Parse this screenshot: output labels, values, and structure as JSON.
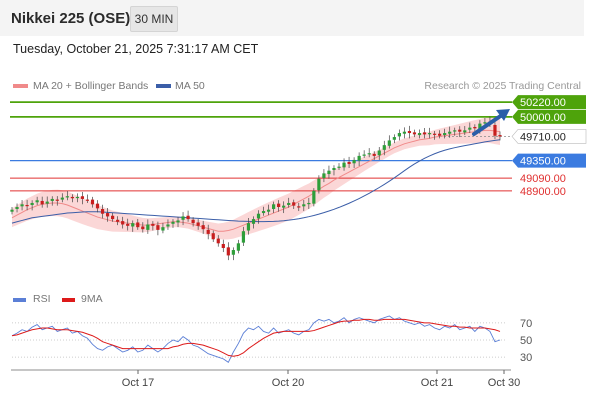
{
  "header": {
    "title": "Nikkei 225 (OSE)",
    "timeframe": "30 MIN"
  },
  "datetime": "Tuesday, October 21, 2025 7:31:17 AM CET",
  "legend": {
    "ma20_label": "MA 20 + Bollinger Bands",
    "ma50_label": "MA 50",
    "ma20_color": "#f08a8a",
    "ma50_color": "#3b5ea8",
    "credit": "Research © 2025 Trading Central"
  },
  "rsi_legend": {
    "rsi_label": "RSI",
    "ma_label": "9MA",
    "rsi_color": "#5b7fd6",
    "ma_color": "#dd1a1a"
  },
  "colors": {
    "up": "#2e9e3a",
    "down": "#c81e1e",
    "resistance": "#4ea30b",
    "pivot": "#3b7be0",
    "support": "#e03030",
    "band": "#fbd7d7",
    "arrow": "#2a5ea8"
  },
  "chart_data": [
    {
      "type": "line",
      "description": "30-minute candlesticks with MA20, Bollinger Bands, MA50 and key levels",
      "x_ticks": [
        "Oct 17",
        "Oct 20",
        "Oct 21",
        "Oct 30"
      ],
      "ylim": [
        47500,
        50400
      ],
      "price_close": [
        48620,
        48660,
        48700,
        48680,
        48720,
        48760,
        48700,
        48740,
        48780,
        48760,
        48800,
        48820,
        48790,
        48810,
        48780,
        48760,
        48700,
        48640,
        48560,
        48520,
        48480,
        48440,
        48400,
        48380,
        48420,
        48360,
        48330,
        48400,
        48380,
        48320,
        48360,
        48400,
        48440,
        48460,
        48520,
        48480,
        48420,
        48380,
        48330,
        48260,
        48180,
        48120,
        48050,
        47940,
        48020,
        48120,
        48300,
        48420,
        48480,
        48560,
        48600,
        48620,
        48700,
        48660,
        48680,
        48720,
        48680,
        48660,
        48700,
        48720,
        48900,
        49080,
        49160,
        49200,
        49240,
        49260,
        49320,
        49300,
        49360,
        49420,
        49440,
        49460,
        49420,
        49500,
        49580,
        49650,
        49700,
        49760,
        49780,
        49760,
        49740,
        49760,
        49740,
        49760,
        49740,
        49720,
        49760,
        49780,
        49800,
        49780,
        49800,
        49840,
        49830,
        49900,
        49920,
        49890,
        49720,
        49710
      ],
      "ma20": [
        48500,
        48540,
        48580,
        48620,
        48650,
        48680,
        48700,
        48710,
        48720,
        48720,
        48710,
        48690,
        48660,
        48630,
        48600,
        48570,
        48540,
        48510,
        48490,
        48470,
        48450,
        48440,
        48430,
        48420,
        48410,
        48400,
        48390,
        48390,
        48400,
        48410,
        48420,
        48430,
        48440,
        48440,
        48430,
        48420,
        48400,
        48380,
        48360,
        48340,
        48320,
        48300,
        48300,
        48310,
        48330,
        48360,
        48390,
        48420,
        48450,
        48480,
        48510,
        48540,
        48570,
        48600,
        48630,
        48660,
        48700,
        48740,
        48780,
        48820,
        48870,
        48920,
        48970,
        49010,
        49060,
        49100,
        49140,
        49180,
        49220,
        49260,
        49300,
        49340,
        49380,
        49420,
        49460,
        49500,
        49540,
        49570,
        49600,
        49620,
        49640,
        49660,
        49670,
        49680,
        49700,
        49710,
        49720,
        49730,
        49740,
        49750,
        49760,
        49770,
        49780,
        49790,
        49800,
        49800,
        49790,
        49780
      ],
      "ma50": [
        48420,
        48440,
        48460,
        48480,
        48500,
        48510,
        48520,
        48530,
        48540,
        48550,
        48560,
        48570,
        48575,
        48580,
        48585,
        48590,
        48590,
        48590,
        48585,
        48580,
        48575,
        48570,
        48565,
        48560,
        48555,
        48550,
        48545,
        48540,
        48535,
        48530,
        48525,
        48520,
        48515,
        48510,
        48505,
        48500,
        48495,
        48490,
        48485,
        48480,
        48475,
        48470,
        48465,
        48460,
        48455,
        48450,
        48448,
        48446,
        48444,
        48443,
        48443,
        48444,
        48446,
        48450,
        48456,
        48464,
        48474,
        48486,
        48500,
        48516,
        48534,
        48554,
        48576,
        48600,
        48626,
        48654,
        48684,
        48716,
        48750,
        48786,
        48824,
        48864,
        48906,
        48950,
        48996,
        49044,
        49094,
        49146,
        49200,
        49252,
        49300,
        49344,
        49384,
        49420,
        49452,
        49480,
        49504,
        49524,
        49542,
        49558,
        49572,
        49586,
        49600,
        49614,
        49628,
        49640,
        49650,
        49660
      ],
      "levels": [
        {
          "label": "50220.00",
          "value": 50220,
          "kind": "resistance"
        },
        {
          "label": "50000.00",
          "value": 50000,
          "kind": "resistance"
        },
        {
          "label": "49710.00",
          "value": 49710,
          "kind": "last"
        },
        {
          "label": "49350.00",
          "value": 49350,
          "kind": "pivot"
        },
        {
          "label": "49090.00",
          "value": 49090,
          "kind": "support"
        },
        {
          "label": "48900.00",
          "value": 48900,
          "kind": "support"
        }
      ]
    },
    {
      "type": "line",
      "title": "RSI",
      "ylim": [
        15,
        85
      ],
      "y_ticks": [
        70,
        50,
        30
      ],
      "rsi": [
        55,
        58,
        62,
        60,
        65,
        68,
        62,
        64,
        66,
        60,
        62,
        64,
        58,
        60,
        55,
        52,
        45,
        40,
        38,
        42,
        44,
        40,
        36,
        38,
        42,
        36,
        38,
        44,
        40,
        36,
        40,
        46,
        50,
        48,
        54,
        50,
        44,
        42,
        38,
        34,
        32,
        30,
        28,
        24,
        36,
        46,
        58,
        64,
        62,
        66,
        60,
        58,
        64,
        58,
        60,
        62,
        58,
        56,
        60,
        62,
        70,
        74,
        72,
        74,
        70,
        72,
        76,
        70,
        74,
        76,
        74,
        72,
        70,
        74,
        76,
        78,
        74,
        76,
        72,
        70,
        68,
        70,
        66,
        68,
        64,
        62,
        66,
        64,
        68,
        62,
        64,
        66,
        60,
        66,
        64,
        60,
        48,
        50
      ],
      "rsi_ma": [
        55,
        56,
        58,
        60,
        62,
        63,
        64,
        64,
        63,
        62,
        62,
        62,
        61,
        60,
        59,
        57,
        55,
        52,
        48,
        46,
        44,
        42,
        40,
        40,
        40,
        40,
        40,
        40,
        40,
        40,
        40,
        40,
        42,
        43,
        45,
        46,
        46,
        45,
        44,
        42,
        40,
        38,
        35,
        32,
        31,
        32,
        35,
        40,
        44,
        48,
        52,
        55,
        58,
        59,
        60,
        60,
        60,
        60,
        60,
        60,
        61,
        63,
        65,
        67,
        69,
        71,
        72,
        72,
        73,
        73,
        74,
        74,
        73,
        73,
        74,
        74,
        74,
        74,
        74,
        73,
        72,
        71,
        70,
        70,
        69,
        68,
        67,
        66,
        66,
        65,
        65,
        64,
        64,
        64,
        64,
        63,
        62,
        60
      ]
    }
  ]
}
